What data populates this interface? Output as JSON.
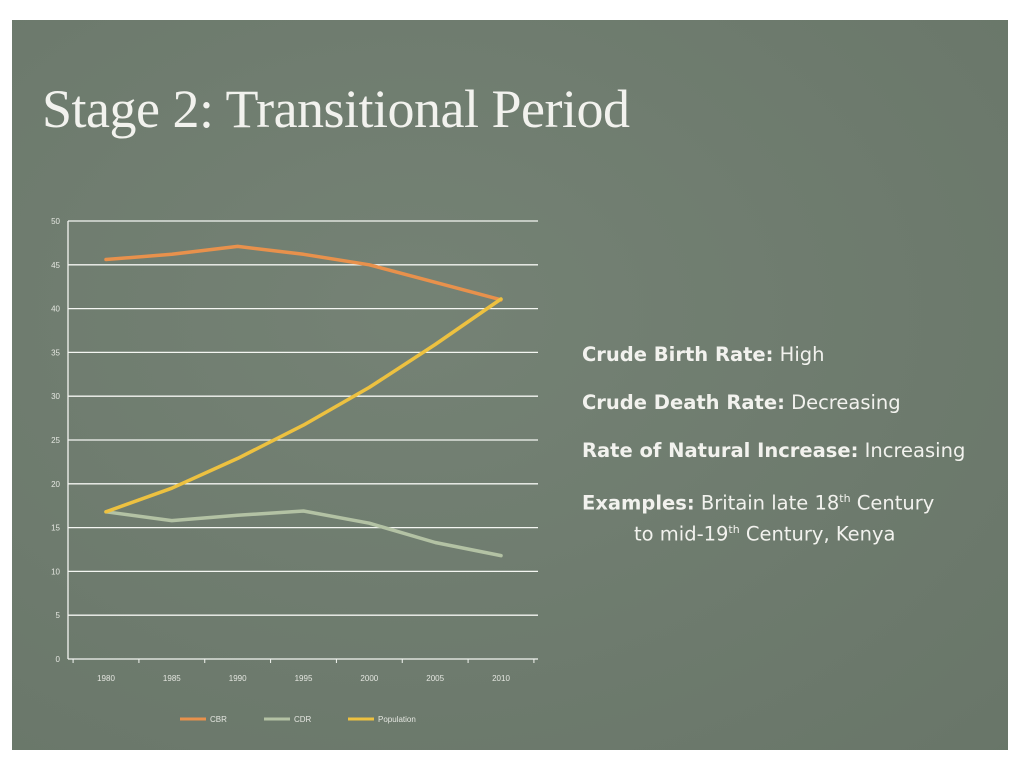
{
  "slide": {
    "title": "Stage 2: Transitional Period",
    "background_color": "#6f7d6f",
    "text_color": "#f2f2ee"
  },
  "info": {
    "birth_rate": {
      "key": "Crude Birth Rate:",
      "value": "High"
    },
    "death_rate": {
      "key": "Crude Death Rate:",
      "value": "Decreasing"
    },
    "natural_increase": {
      "key": "Rate of Natural Increase:",
      "value": "Increasing"
    },
    "examples": {
      "key": "Examples:",
      "part1": "Britain late 18",
      "sup1": "th",
      "part2": " Century",
      "part3": "to mid-19",
      "sup2": "th",
      "part4": " Century, Kenya"
    }
  },
  "chart_data": {
    "type": "line",
    "categories": [
      "1980",
      "1985",
      "1990",
      "1995",
      "2000",
      "2005",
      "2010"
    ],
    "ylim": [
      0,
      50
    ],
    "yticks": [
      0,
      5,
      10,
      15,
      20,
      25,
      30,
      35,
      40,
      45,
      50
    ],
    "grid": true,
    "legend_position": "bottom",
    "series": [
      {
        "name": "CBR",
        "color": "#e8914c",
        "values": [
          45.6,
          46.2,
          47.1,
          46.2,
          45.0,
          43.0,
          41.0
        ]
      },
      {
        "name": "CDR",
        "color": "#b3c2a4",
        "values": [
          16.8,
          15.8,
          16.4,
          16.9,
          15.5,
          13.3,
          11.8
        ]
      },
      {
        "name": "Population",
        "color": "#edc140",
        "values": [
          16.8,
          19.5,
          22.9,
          26.7,
          31.0,
          35.9,
          41.1
        ]
      }
    ]
  }
}
